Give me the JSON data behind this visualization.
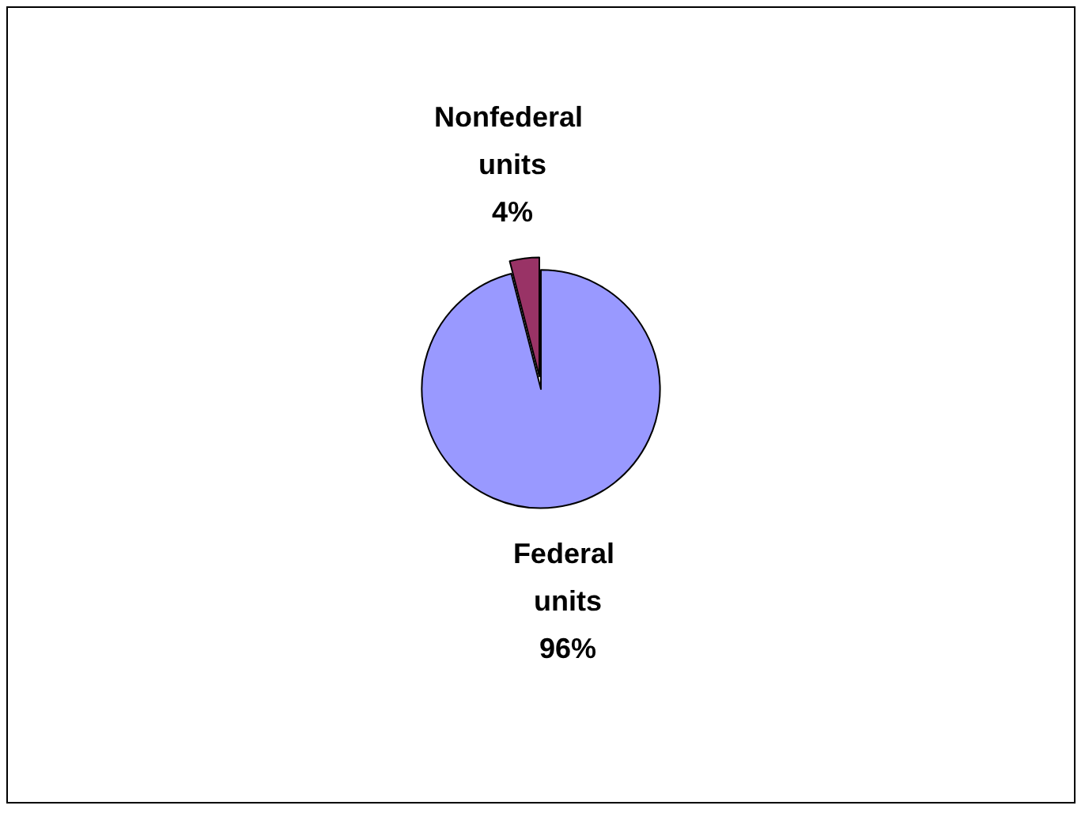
{
  "chart_data": {
    "type": "pie",
    "categories": [
      "Federal units",
      "Nonfederal units"
    ],
    "values": [
      96,
      4
    ],
    "colors": [
      "#9999ff",
      "#993366"
    ],
    "value_labels": [
      "96%",
      "4%"
    ],
    "legend": false
  }
}
